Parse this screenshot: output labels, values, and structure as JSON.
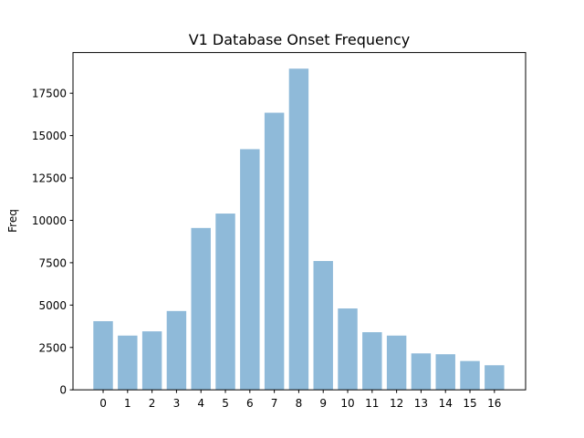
{
  "chart_data": {
    "type": "bar",
    "title": "V1 Database Onset Frequency",
    "xlabel": "",
    "ylabel": "Freq",
    "categories": [
      "0",
      "1",
      "2",
      "3",
      "4",
      "5",
      "6",
      "7",
      "8",
      "9",
      "10",
      "11",
      "12",
      "13",
      "14",
      "15",
      "16"
    ],
    "values": [
      4050,
      3200,
      3450,
      4650,
      9550,
      10400,
      14200,
      16350,
      18950,
      7600,
      4800,
      3400,
      3200,
      2150,
      2100,
      1700,
      1450
    ],
    "yticks": [
      0,
      2500,
      5000,
      7500,
      10000,
      12500,
      15000,
      17500
    ],
    "ylim": [
      0,
      19900
    ],
    "bar_color": "#8fbad9",
    "grid": false,
    "legend": "none"
  }
}
